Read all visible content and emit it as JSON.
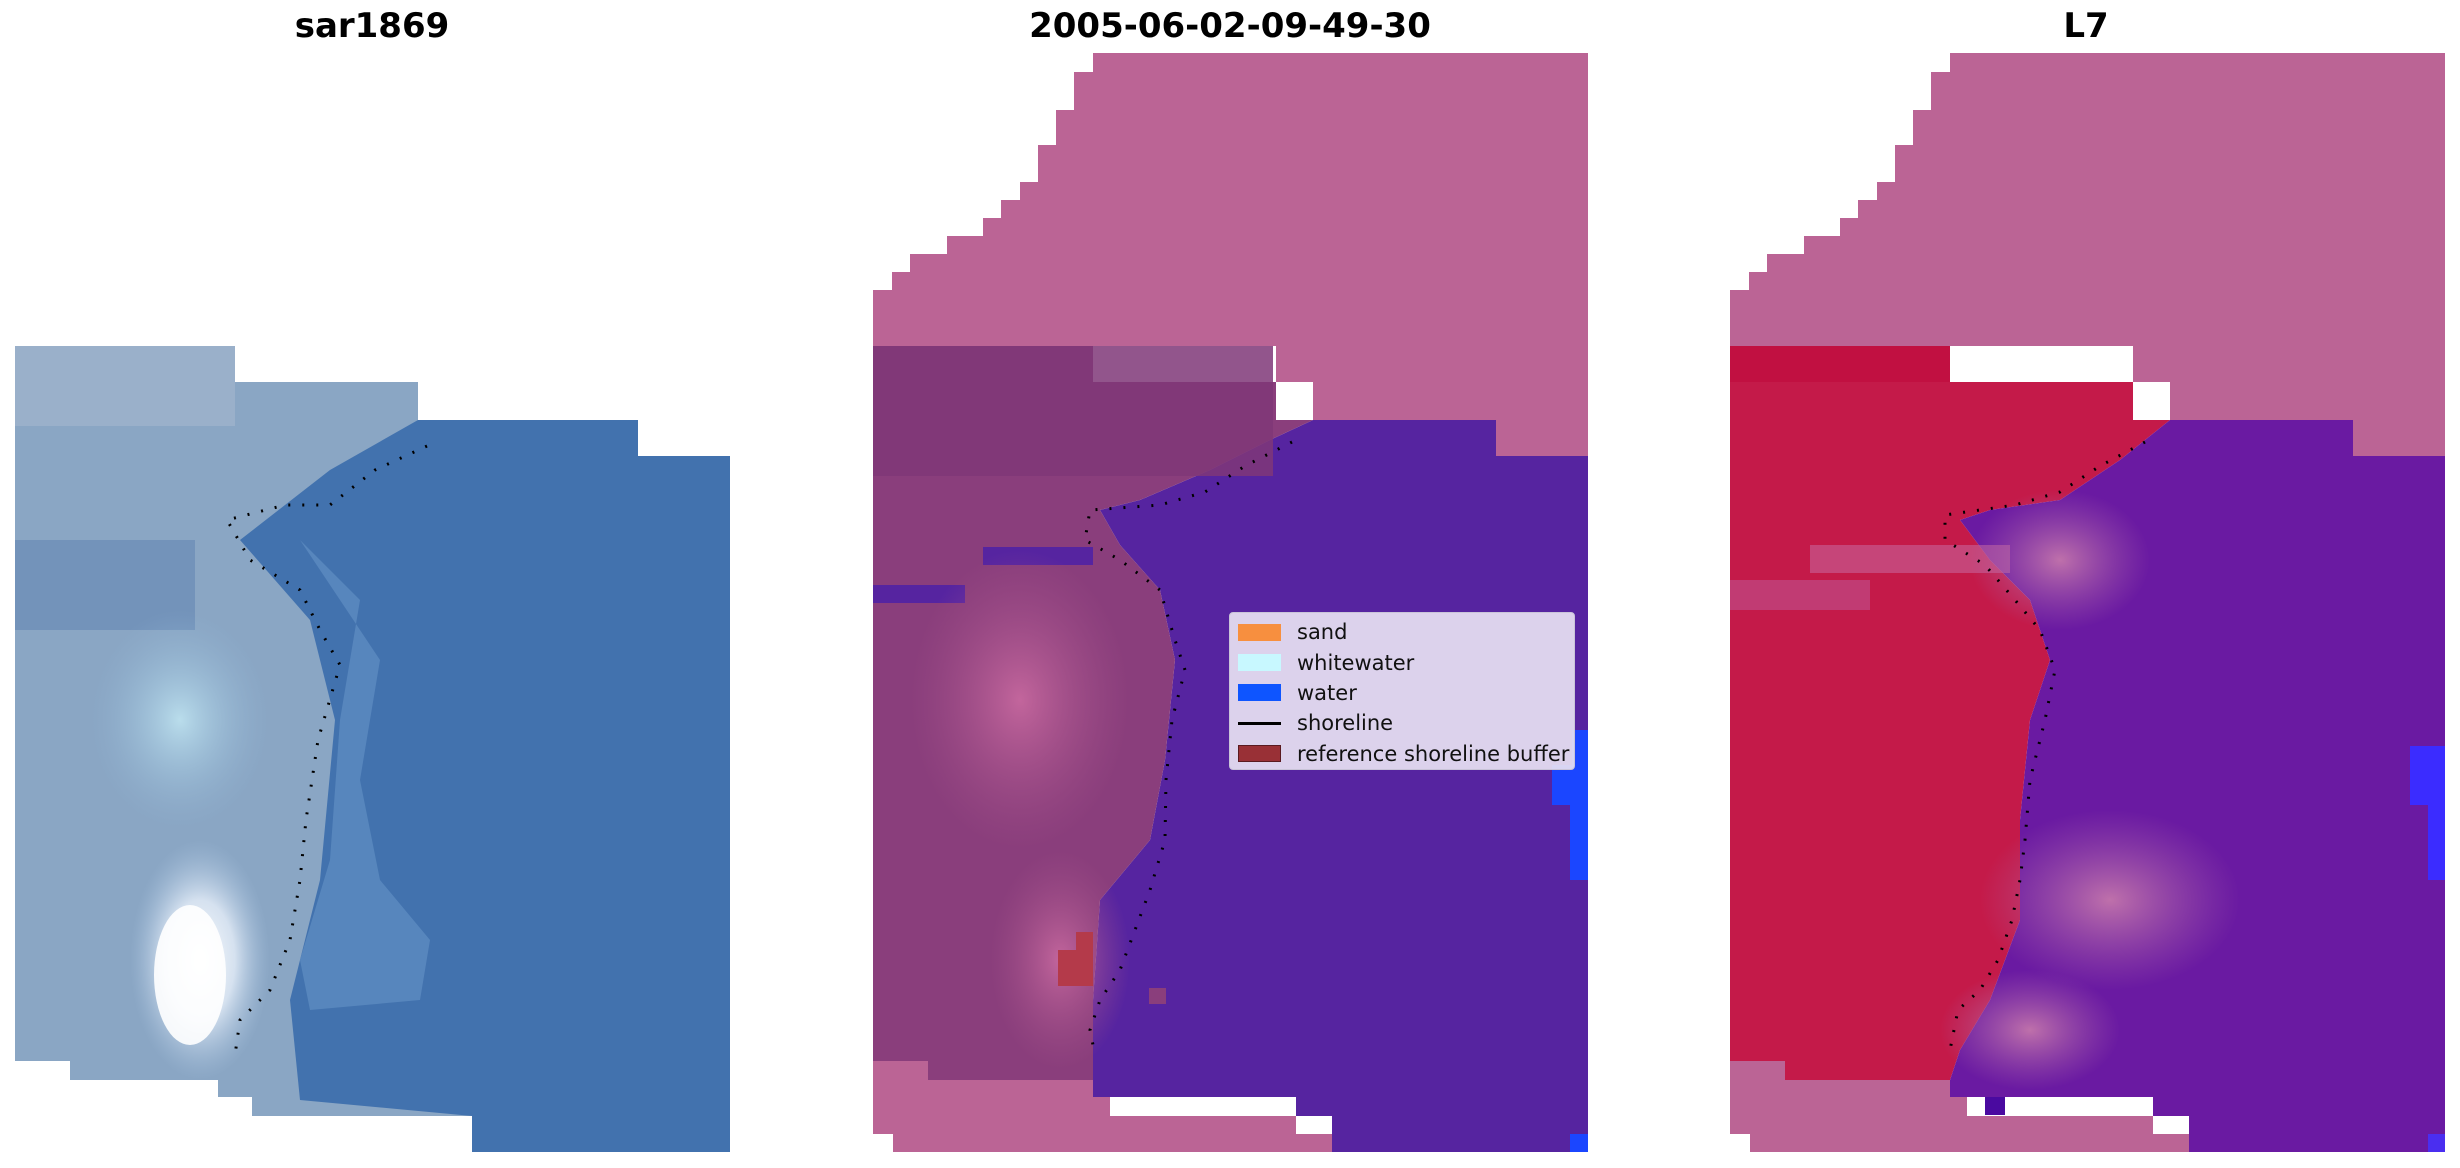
{
  "titles": {
    "sar": "sar1869",
    "classification": "2005-06-02-09-49-30",
    "satellite": "L7"
  },
  "legend": {
    "items": [
      {
        "label": "sand",
        "color": "#f78f3f",
        "kind": "patch"
      },
      {
        "label": "whitewater",
        "color": "#c8f8ff",
        "kind": "patch"
      },
      {
        "label": "water",
        "color": "#0e55ff",
        "kind": "patch"
      },
      {
        "label": "shoreline",
        "color": "#000000",
        "kind": "line"
      },
      {
        "label": "reference shoreline buffer",
        "color": "#993036",
        "kind": "patch"
      }
    ]
  },
  "colors": {
    "land_pink": "#bb6495",
    "water_purple": "#5624a0",
    "sar_blue": "#3f6faa",
    "l7_red": "#c41a49",
    "l7_purple": "#6a1aa2",
    "bright_blue": "#1b46ff"
  }
}
